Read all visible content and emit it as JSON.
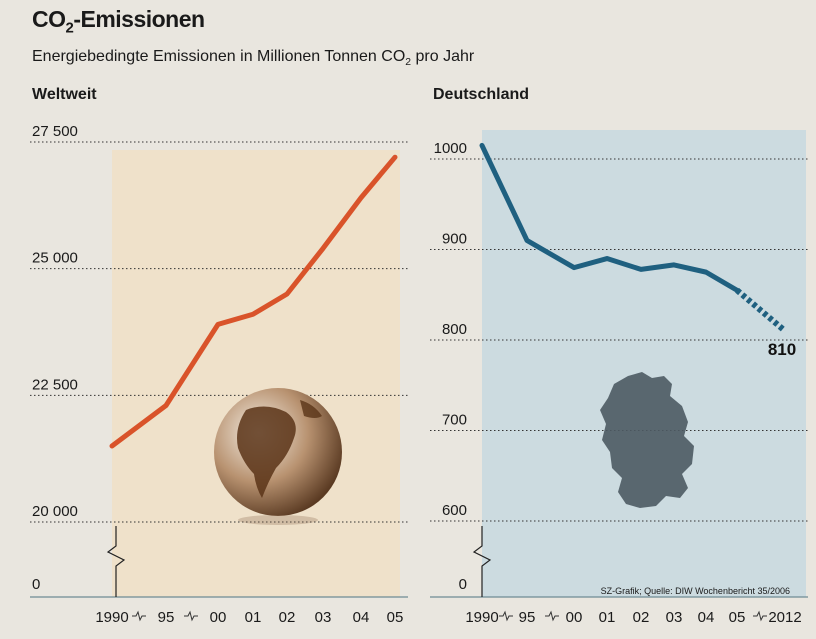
{
  "header": {
    "title_main": "CO",
    "title_sub": "2",
    "title_rest": "-Emissionen",
    "subtitle_main": "Energiebedingte Emissionen in Millionen Tonnen CO",
    "subtitle_sub": "2",
    "subtitle_rest": " pro Jahr"
  },
  "source": "SZ-Grafik; Quelle: DIW Wochenbericht 35/2006",
  "colors": {
    "world_line": "#d9532a",
    "de_line": "#1f6080",
    "world_bg": "#efe0c8",
    "de_bg": "#c9d9e0"
  },
  "chart_data": [
    {
      "type": "line",
      "title": "Weltweit",
      "categories": [
        "1990",
        "95",
        "00",
        "01",
        "02",
        "03",
        "04",
        "05"
      ],
      "y_tick_labels": [
        "0",
        "20 000",
        "22 500",
        "25 000",
        "27 500"
      ],
      "ylim": [
        20000,
        27500
      ],
      "axis_break": true,
      "series": [
        {
          "values": [
            21500,
            22300,
            23900,
            24100,
            24500,
            25400,
            26400,
            27200
          ]
        }
      ]
    },
    {
      "type": "line",
      "title": "Deutschland",
      "categories": [
        "1990",
        "95",
        "00",
        "01",
        "02",
        "03",
        "04",
        "05",
        "2012"
      ],
      "y_tick_labels": [
        "0",
        "600",
        "700",
        "800",
        "900",
        "1000"
      ],
      "ylim": [
        600,
        1000
      ],
      "axis_break": true,
      "end_label": "810",
      "series": [
        {
          "values": [
            1015,
            910,
            880,
            890,
            878,
            883,
            875,
            855,
            810
          ],
          "projected_from_index": 7
        }
      ]
    }
  ]
}
